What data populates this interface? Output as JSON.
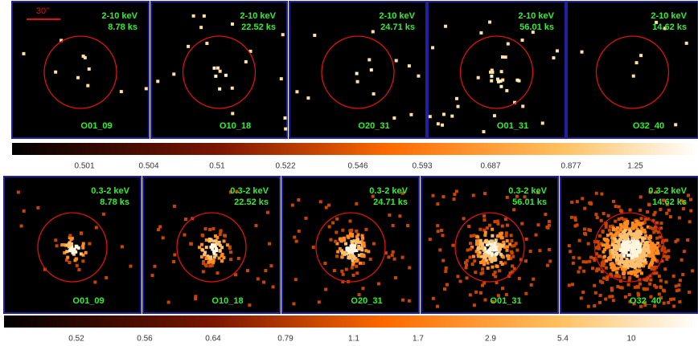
{
  "scale_bar": "30\"",
  "rows": [
    {
      "energy_band": "2-10 keV",
      "panels": [
        {
          "exposure": "8.78 ks",
          "obs": "O01_09"
        },
        {
          "exposure": "22.52 ks",
          "obs": "O10_18"
        },
        {
          "exposure": "24.71 ks",
          "obs": "O20_31"
        },
        {
          "exposure": "56.01 ks",
          "obs": "O01_31"
        },
        {
          "exposure": "14.62 ks",
          "obs": "O32_40"
        }
      ],
      "colorbar_ticks": [
        "0.501",
        "0.504",
        "0.51",
        "0.522",
        "0.546",
        "0.593",
        "0.687",
        "0.877",
        "1.25"
      ]
    },
    {
      "energy_band": "0.3-2 keV",
      "panels": [
        {
          "exposure": "8.78 ks",
          "obs": "O01_09"
        },
        {
          "exposure": "22.52 ks",
          "obs": "O10_18"
        },
        {
          "exposure": "24.71 ks",
          "obs": "O20_31"
        },
        {
          "exposure": "56.01 ks",
          "obs": "O01_31"
        },
        {
          "exposure": "14.62 ks",
          "obs": "O32_40"
        }
      ],
      "colorbar_ticks": [
        "0.52",
        "0.56",
        "0.64",
        "0.79",
        "1.1",
        "1.7",
        "2.9",
        "5.4",
        "10"
      ]
    }
  ]
}
